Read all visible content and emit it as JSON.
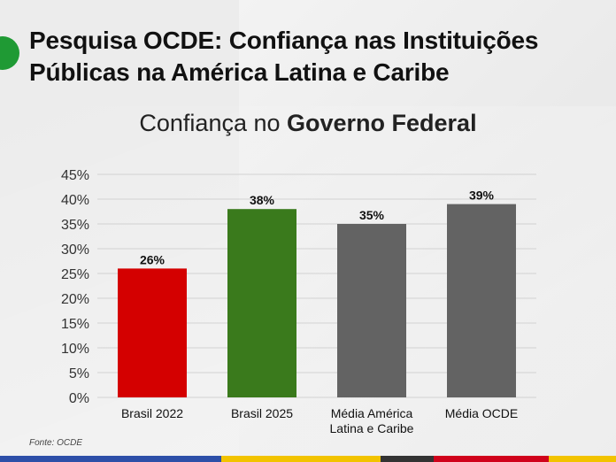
{
  "header": {
    "title": "Pesquisa OCDE: Confiança nas Instituições Públicas na América Latina e Caribe",
    "subtitle_prefix": "Confiança no ",
    "subtitle_bold": "Governo Federal"
  },
  "source": "Fonte: OCDE",
  "colors": {
    "accent_dot": "#1f9a34",
    "stripe": [
      "#2d4fa8",
      "#f2c300",
      "#333333",
      "#d0021b",
      "#f2c300"
    ]
  },
  "chart_data": {
    "type": "bar",
    "categories": [
      [
        "Brasil 2022"
      ],
      [
        "Brasil 2025"
      ],
      [
        "Média América",
        "Latina e Caribe"
      ],
      [
        "Média OCDE"
      ]
    ],
    "values": [
      26,
      38,
      35,
      39
    ],
    "value_labels": [
      "26%",
      "38%",
      "35%",
      "39%"
    ],
    "colors": [
      "#d40000",
      "#3a7a1c",
      "#636363",
      "#636363"
    ],
    "yticks": [
      "0%",
      "5%",
      "10%",
      "15%",
      "20%",
      "25%",
      "30%",
      "35%",
      "40%",
      "45%"
    ],
    "ylim": [
      0,
      45
    ],
    "grid": true
  }
}
